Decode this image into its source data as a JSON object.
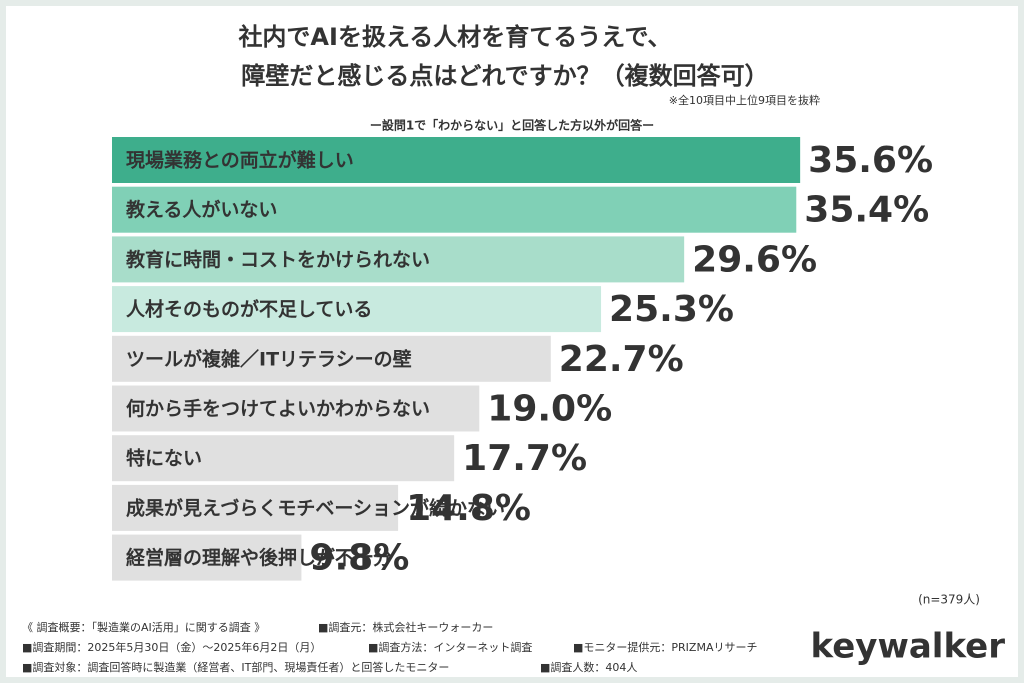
{
  "chart_data": {
    "type": "hbar",
    "title": [
      "社内でAIを扱える人材を育てるうえで、",
      "障壁だと感じる点はどれですか？（複数回答可）"
    ],
    "note": "※全10項目中上位9項目を抜粋",
    "subtitle": "ー設問1で「わからない」と回答した方以外が回答ー",
    "categories": [
      "現場業務との両立が難しい",
      "教える人がいない",
      "教育に時間・コストをかけられない",
      "人材そのものが不足している",
      "ツールが複雑／ITリテラシーの壁",
      "何から手をつけてよいかわからない",
      "特にない",
      "成果が見えづらくモチベーションが続かない",
      "経営層の理解や後押しが不十分"
    ],
    "values": [
      35.6,
      35.4,
      29.6,
      25.3,
      22.7,
      19.0,
      17.7,
      14.8,
      9.8
    ],
    "value_labels": [
      "35.6%",
      "35.4%",
      "29.6%",
      "25.3%",
      "22.7%",
      "19.0%",
      "17.7%",
      "14.8%",
      "9.8%"
    ],
    "colors": [
      "#3eae8c",
      "#80d0b6",
      "#a8ddca",
      "#c8eadf",
      "#e0e0e0",
      "#e0e0e0",
      "#e0e0e0",
      "#e0e0e0",
      "#e0e0e0"
    ],
    "value_label_colors": [
      "#3a9f7f",
      "#6ec6a8",
      "#92d5bd",
      "#b4e1d1",
      "#333333",
      "#333333",
      "#333333",
      "#333333",
      "#333333"
    ],
    "category_label_colors": [
      "#ffffff",
      "#ffffff",
      "#ffffff",
      "#ffffff",
      "#333333",
      "#333333",
      "#333333",
      "#333333",
      "#333333"
    ],
    "sample_note": "(n=379人)",
    "footer": [
      [
        "《 調査概要：「製造業のAI活用」に関する調査 》",
        "■調査元：株式会社キーウォーカー"
      ],
      [
        "■調査期間：2025年5月30日（金）～2025年6月2日（月）",
        "■調査方法：インターネット調査",
        "■モニター提供元：PRIZMAリサーチ"
      ],
      [
        "■調査対象：調査回答時に製造業（経営者、IT部門、現場責任者）と回答したモニター",
        "■調査人数：404人"
      ]
    ],
    "logo": "keywalker"
  }
}
